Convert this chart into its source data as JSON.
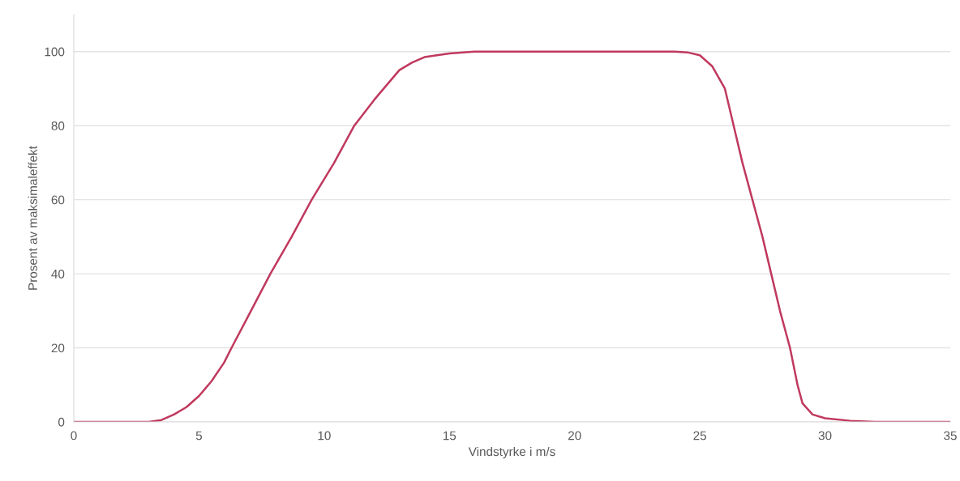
{
  "chart_data": {
    "type": "line",
    "xlabel": "Vindstyrke i m/s",
    "ylabel": "Prosent av maksimaleffekt",
    "xlim": [
      0,
      35
    ],
    "xticks": [
      0,
      5,
      10,
      15,
      20,
      25,
      30,
      35
    ],
    "ylim": [
      0,
      110
    ],
    "yticks": [
      0,
      20,
      40,
      60,
      80,
      100
    ],
    "grid": "y",
    "marker": "none",
    "line_style": "solid",
    "series": [
      {
        "color": "#c0395e",
        "x": [
          0,
          3,
          3.5,
          4,
          4.5,
          5,
          5.5,
          6,
          6.3,
          7,
          7.85,
          8.7,
          9.5,
          10.4,
          11.2,
          12,
          12.5,
          13,
          13.5,
          14,
          15,
          16,
          20,
          24,
          24.5,
          25,
          25.5,
          26,
          26.35,
          26.7,
          27.1,
          27.5,
          27.85,
          28.2,
          28.6,
          28.9,
          29.1,
          29.5,
          30,
          31,
          32,
          35
        ],
        "values": [
          0,
          0,
          0.5,
          2,
          4,
          7,
          11,
          16,
          20,
          29,
          40,
          50,
          60,
          70,
          80,
          87,
          91,
          95,
          97,
          98.5,
          99.5,
          100,
          100,
          100,
          99.8,
          99,
          96,
          90,
          80,
          70,
          60,
          50,
          40,
          30,
          20,
          10,
          5,
          2,
          1,
          0.3,
          0,
          0
        ]
      }
    ]
  }
}
